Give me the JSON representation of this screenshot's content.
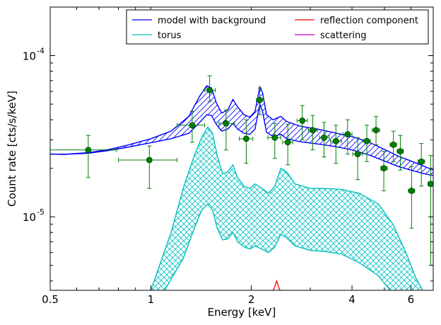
{
  "chart_data": {
    "type": "line",
    "xlabel": "Energy [keV]",
    "ylabel": "Count rate [cts/s/keV]",
    "xscale": "log",
    "yscale": "log",
    "xlim": [
      0.5,
      7.0
    ],
    "ylim": [
      3.5e-06,
      0.0002
    ],
    "x_ticks": [
      {
        "value": 0.5,
        "label": "0.5"
      },
      {
        "value": 1,
        "label": "1"
      },
      {
        "value": 2,
        "label": "2"
      },
      {
        "value": 4,
        "label": "4"
      },
      {
        "value": 6,
        "label": "6"
      }
    ],
    "y_ticks": [
      {
        "value": 1e-05,
        "base": "10",
        "exp": "-5"
      },
      {
        "value": 0.0001,
        "base": "10",
        "exp": "-4"
      }
    ],
    "legend": {
      "position": "top-right",
      "columns": 2,
      "entries": [
        {
          "label": "model with background",
          "color": "#0000ff"
        },
        {
          "label": "reflection component",
          "color": "#ff0000"
        },
        {
          "label": "torus",
          "color": "#00bfbf"
        },
        {
          "label": "scattering",
          "color": "#bf00bf"
        }
      ]
    },
    "series": [
      {
        "name": "model with background",
        "color": "#0000ff",
        "style": "band",
        "upper": [
          [
            0.5,
            2.45e-05
          ],
          [
            0.55,
            2.44e-05
          ],
          [
            0.65,
            2.5e-05
          ],
          [
            0.75,
            2.62e-05
          ],
          [
            0.85,
            2.78e-05
          ],
          [
            1.0,
            3.05e-05
          ],
          [
            1.15,
            3.4e-05
          ],
          [
            1.3,
            4.2e-05
          ],
          [
            1.4,
            5.6e-05
          ],
          [
            1.47,
            6.5e-05
          ],
          [
            1.52,
            6.3e-05
          ],
          [
            1.57,
            5.1e-05
          ],
          [
            1.63,
            4.4e-05
          ],
          [
            1.7,
            4.6e-05
          ],
          [
            1.76,
            5.35e-05
          ],
          [
            1.82,
            4.8e-05
          ],
          [
            1.9,
            4.3e-05
          ],
          [
            1.98,
            4.15e-05
          ],
          [
            2.05,
            4.5e-05
          ],
          [
            2.12,
            6.4e-05
          ],
          [
            2.16,
            5.9e-05
          ],
          [
            2.22,
            4.3e-05
          ],
          [
            2.32,
            4e-05
          ],
          [
            2.45,
            4.2e-05
          ],
          [
            2.55,
            3.9e-05
          ],
          [
            2.8,
            3.65e-05
          ],
          [
            3.2,
            3.48e-05
          ],
          [
            3.6,
            3.3e-05
          ],
          [
            4.0,
            3.15e-05
          ],
          [
            4.5,
            2.9e-05
          ],
          [
            5.0,
            2.62e-05
          ],
          [
            5.5,
            2.38e-05
          ],
          [
            6.0,
            2.22e-05
          ],
          [
            6.5,
            2.08e-05
          ],
          [
            7.0,
            1.95e-05
          ]
        ],
        "lower": [
          [
            0.5,
            2.45e-05
          ],
          [
            0.55,
            2.44e-05
          ],
          [
            0.65,
            2.48e-05
          ],
          [
            0.75,
            2.58e-05
          ],
          [
            0.85,
            2.7e-05
          ],
          [
            1.0,
            2.88e-05
          ],
          [
            1.15,
            3.05e-05
          ],
          [
            1.3,
            3.3e-05
          ],
          [
            1.4,
            3.85e-05
          ],
          [
            1.47,
            4.3e-05
          ],
          [
            1.52,
            4.25e-05
          ],
          [
            1.57,
            3.75e-05
          ],
          [
            1.63,
            3.4e-05
          ],
          [
            1.7,
            3.5e-05
          ],
          [
            1.76,
            3.8e-05
          ],
          [
            1.82,
            3.5e-05
          ],
          [
            1.9,
            3.3e-05
          ],
          [
            1.98,
            3.25e-05
          ],
          [
            2.05,
            3.5e-05
          ],
          [
            2.12,
            5e-05
          ],
          [
            2.16,
            4.5e-05
          ],
          [
            2.22,
            3.35e-05
          ],
          [
            2.32,
            3.15e-05
          ],
          [
            2.45,
            3.25e-05
          ],
          [
            2.55,
            3.05e-05
          ],
          [
            2.8,
            2.92e-05
          ],
          [
            3.2,
            2.82e-05
          ],
          [
            3.6,
            2.72e-05
          ],
          [
            4.0,
            2.6e-05
          ],
          [
            4.5,
            2.42e-05
          ],
          [
            5.0,
            2.22e-05
          ],
          [
            5.5,
            2.05e-05
          ],
          [
            6.0,
            1.95e-05
          ],
          [
            6.5,
            1.86e-05
          ],
          [
            7.0,
            1.8e-05
          ]
        ]
      },
      {
        "name": "torus",
        "color": "#00bfbf",
        "style": "band",
        "upper": [
          [
            1.0,
            3.5e-06
          ],
          [
            1.15,
            8e-06
          ],
          [
            1.25,
            1.5e-05
          ],
          [
            1.35,
            2.4e-05
          ],
          [
            1.42,
            3.1e-05
          ],
          [
            1.48,
            3.6e-05
          ],
          [
            1.53,
            3.3e-05
          ],
          [
            1.58,
            2.4e-05
          ],
          [
            1.64,
            1.85e-05
          ],
          [
            1.7,
            1.9e-05
          ],
          [
            1.76,
            2.1e-05
          ],
          [
            1.82,
            1.75e-05
          ],
          [
            1.9,
            1.55e-05
          ],
          [
            1.98,
            1.5e-05
          ],
          [
            2.05,
            1.6e-05
          ],
          [
            2.15,
            1.5e-05
          ],
          [
            2.25,
            1.4e-05
          ],
          [
            2.35,
            1.55e-05
          ],
          [
            2.45,
            2e-05
          ],
          [
            2.55,
            1.9e-05
          ],
          [
            2.7,
            1.6e-05
          ],
          [
            3.0,
            1.5e-05
          ],
          [
            3.3,
            1.5e-05
          ],
          [
            3.7,
            1.48e-05
          ],
          [
            4.2,
            1.4e-05
          ],
          [
            4.8,
            1.2e-05
          ],
          [
            5.3,
            9e-06
          ],
          [
            5.8,
            6e-06
          ],
          [
            6.2,
            4.2e-06
          ],
          [
            6.5,
            3.5e-06
          ]
        ],
        "lower": [
          [
            1.1,
            3.5e-06
          ],
          [
            1.25,
            5.5e-06
          ],
          [
            1.35,
            8.5e-06
          ],
          [
            1.42,
            1.1e-05
          ],
          [
            1.48,
            1.2e-05
          ],
          [
            1.53,
            1.1e-05
          ],
          [
            1.58,
            8.5e-06
          ],
          [
            1.64,
            7.2e-06
          ],
          [
            1.7,
            7.3e-06
          ],
          [
            1.76,
            8e-06
          ],
          [
            1.82,
            7e-06
          ],
          [
            1.9,
            6.5e-06
          ],
          [
            1.98,
            6.3e-06
          ],
          [
            2.05,
            6.6e-06
          ],
          [
            2.15,
            6.3e-06
          ],
          [
            2.25,
            6e-06
          ],
          [
            2.35,
            6.5e-06
          ],
          [
            2.45,
            7.8e-06
          ],
          [
            2.55,
            7.4e-06
          ],
          [
            2.7,
            6.6e-06
          ],
          [
            3.0,
            6.2e-06
          ],
          [
            3.3,
            6.1e-06
          ],
          [
            3.7,
            5.9e-06
          ],
          [
            4.2,
            5.2e-06
          ],
          [
            4.8,
            4.3e-06
          ],
          [
            5.2,
            3.5e-06
          ]
        ]
      },
      {
        "name": "reflection component",
        "color": "#ff0000",
        "style": "line",
        "points": [
          [
            2.28,
            3.3e-06
          ],
          [
            2.34,
            3.6e-06
          ],
          [
            2.38,
            4e-06
          ],
          [
            2.42,
            3.6e-06
          ],
          [
            2.47,
            3.3e-06
          ]
        ]
      },
      {
        "name": "data",
        "color": "#008000",
        "style": "errorbar",
        "points": [
          {
            "x": 0.65,
            "y": 2.6e-05,
            "xlo": 0.5,
            "xhi": 0.79,
            "ylo": 1.75e-05,
            "yhi": 3.2e-05
          },
          {
            "x": 0.99,
            "y": 2.25e-05,
            "xlo": 0.8,
            "xhi": 1.2,
            "ylo": 1.5e-05,
            "yhi": 2.75e-05
          },
          {
            "x": 1.33,
            "y": 3.7e-05,
            "xlo": 1.2,
            "xhi": 1.45,
            "ylo": 2.9e-05,
            "yhi": 4.5e-05
          },
          {
            "x": 1.5,
            "y": 6.1e-05,
            "xlo": 1.45,
            "xhi": 1.56,
            "ylo": 5.2e-05,
            "yhi": 7.5e-05
          },
          {
            "x": 1.68,
            "y": 3.8e-05,
            "xlo": 1.6,
            "xhi": 1.78,
            "ylo": 2.6e-05,
            "yhi": 4.6e-05
          },
          {
            "x": 1.93,
            "y": 3.05e-05,
            "xlo": 1.84,
            "xhi": 2.02,
            "ylo": 2.15e-05,
            "yhi": 4e-05
          },
          {
            "x": 2.12,
            "y": 5.3e-05,
            "xlo": 2.07,
            "xhi": 2.18,
            "ylo": 4.3e-05,
            "yhi": 6.3e-05
          },
          {
            "x": 2.35,
            "y": 3.1e-05,
            "xlo": 2.24,
            "xhi": 2.45,
            "ylo": 2.3e-05,
            "yhi": 3.8e-05
          },
          {
            "x": 2.57,
            "y": 2.9e-05,
            "xlo": 2.48,
            "xhi": 2.66,
            "ylo": 2.1e-05,
            "yhi": 3.75e-05
          },
          {
            "x": 2.84,
            "y": 3.95e-05,
            "xlo": 2.74,
            "xhi": 2.94,
            "ylo": 3e-05,
            "yhi": 4.9e-05
          },
          {
            "x": 3.05,
            "y": 3.45e-05,
            "xlo": 2.96,
            "xhi": 3.15,
            "ylo": 2.6e-05,
            "yhi": 4.25e-05
          },
          {
            "x": 3.3,
            "y": 3.1e-05,
            "xlo": 3.2,
            "xhi": 3.42,
            "ylo": 2.35e-05,
            "yhi": 3.85e-05
          },
          {
            "x": 3.58,
            "y": 2.95e-05,
            "xlo": 3.45,
            "xhi": 3.72,
            "ylo": 2.15e-05,
            "yhi": 3.7e-05
          },
          {
            "x": 3.88,
            "y": 3.25e-05,
            "xlo": 3.76,
            "xhi": 4.0,
            "ylo": 2.45e-05,
            "yhi": 4e-05
          },
          {
            "x": 4.16,
            "y": 2.45e-05,
            "xlo": 4.02,
            "xhi": 4.3,
            "ylo": 1.7e-05,
            "yhi": 3.1e-05
          },
          {
            "x": 4.43,
            "y": 2.95e-05,
            "xlo": 4.32,
            "xhi": 4.54,
            "ylo": 2.2e-05,
            "yhi": 3.7e-05
          },
          {
            "x": 4.72,
            "y": 3.45e-05,
            "xlo": 4.6,
            "xhi": 4.84,
            "ylo": 2.8e-05,
            "yhi": 4.2e-05
          },
          {
            "x": 4.98,
            "y": 2e-05,
            "xlo": 4.88,
            "xhi": 5.1,
            "ylo": 1.45e-05,
            "yhi": 2.55e-05
          },
          {
            "x": 5.32,
            "y": 2.8e-05,
            "xlo": 5.2,
            "xhi": 5.44,
            "ylo": 2.2e-05,
            "yhi": 3.4e-05
          },
          {
            "x": 5.58,
            "y": 2.55e-05,
            "xlo": 5.46,
            "xhi": 5.7,
            "ylo": 1.95e-05,
            "yhi": 3.2e-05
          },
          {
            "x": 6.03,
            "y": 1.45e-05,
            "xlo": 5.9,
            "xhi": 6.16,
            "ylo": 8.5e-06,
            "yhi": 2.05e-05
          },
          {
            "x": 6.45,
            "y": 2.2e-05,
            "xlo": 6.3,
            "xhi": 6.6,
            "ylo": 1.55e-05,
            "yhi": 2.85e-05
          },
          {
            "x": 6.88,
            "y": 1.6e-05,
            "xlo": 6.75,
            "xhi": 7.0,
            "ylo": 5e-06,
            "yhi": 2.4e-05
          }
        ]
      }
    ]
  }
}
